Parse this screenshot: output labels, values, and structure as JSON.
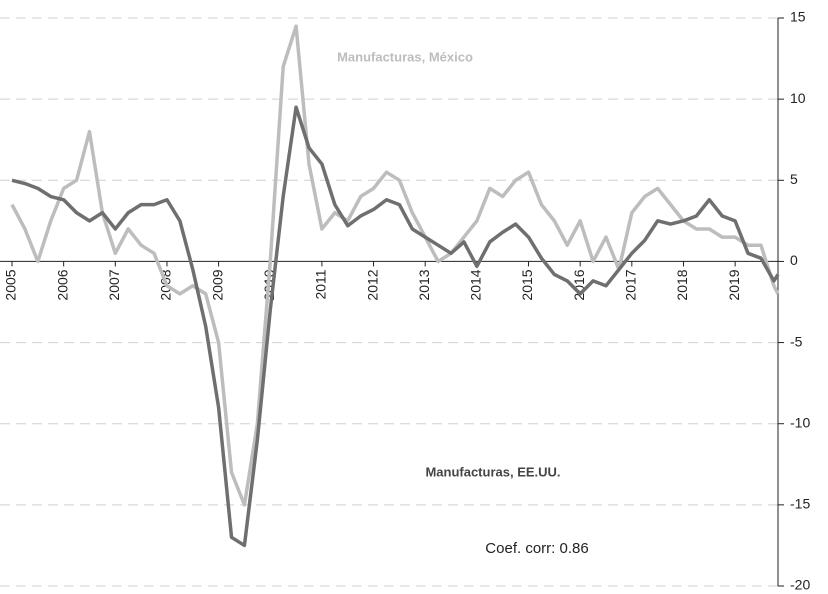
{
  "chart_data": {
    "type": "line",
    "x": [
      2005,
      2005.25,
      2005.5,
      2005.75,
      2006,
      2006.25,
      2006.5,
      2006.75,
      2007,
      2007.25,
      2007.5,
      2007.75,
      2008,
      2008.25,
      2008.5,
      2008.75,
      2009,
      2009.25,
      2009.5,
      2009.75,
      2010,
      2010.25,
      2010.5,
      2010.75,
      2011,
      2011.25,
      2011.5,
      2011.75,
      2012,
      2012.25,
      2012.5,
      2012.75,
      2013,
      2013.25,
      2013.5,
      2013.75,
      2014,
      2014.25,
      2014.5,
      2014.75,
      2015,
      2015.25,
      2015.5,
      2015.75,
      2016,
      2016.25,
      2016.5,
      2016.75,
      2017,
      2017.25,
      2017.5,
      2017.75,
      2018,
      2018.25,
      2018.5,
      2018.75,
      2019,
      2019.25,
      2019.5,
      2019.75,
      2019.83
    ],
    "series": [
      {
        "name": "Manufacturas, EE.UU.",
        "color": "#6f6f6f",
        "values": [
          5,
          4.8,
          4.5,
          4,
          3.8,
          3,
          2.5,
          3,
          2,
          3,
          3.5,
          3.5,
          3.8,
          2.5,
          -0.5,
          -4,
          -9,
          -17,
          -17.5,
          -11,
          -3,
          4,
          9.5,
          7,
          6,
          3.5,
          2.2,
          2.8,
          3.2,
          3.8,
          3.5,
          2,
          1.5,
          1,
          0.5,
          1.2,
          -0.3,
          1.2,
          1.8,
          2.3,
          1.5,
          0.2,
          -0.8,
          -1.2,
          -2,
          -1.2,
          -1.5,
          -0.5,
          0.5,
          1.3,
          2.5,
          2.3,
          2.5,
          2.8,
          3.8,
          2.8,
          2.5,
          0.5,
          0.2,
          -1.2,
          -0.8
        ]
      },
      {
        "name": "Manufacturas, México",
        "color": "#bdbdbd",
        "values": [
          3.5,
          2,
          0,
          2.5,
          4.5,
          5,
          8,
          3,
          0.5,
          2,
          1,
          0.5,
          -1.5,
          -2,
          -1.5,
          -2,
          -5,
          -13,
          -15,
          -10,
          0,
          12,
          14.5,
          6,
          2,
          3,
          2.5,
          4,
          4.5,
          5.5,
          5,
          3,
          1.5,
          0,
          0.5,
          1.5,
          2.5,
          4.5,
          4,
          5,
          5.5,
          3.5,
          2.5,
          1,
          2.5,
          0,
          1.5,
          -0.5,
          3,
          4,
          4.5,
          3.5,
          2.5,
          2,
          2,
          1.5,
          1.5,
          1,
          1,
          -1.5,
          -2
        ]
      }
    ],
    "annotations": [
      "Manufacturas, México",
      "Manufacturas, EE.UU.",
      "Coef. corr: 0.86"
    ],
    "xlim": [
      2005,
      2019.83
    ],
    "xticks": [
      2005,
      2006,
      2007,
      2008,
      2009,
      2010,
      2011,
      2012,
      2013,
      2014,
      2015,
      2016,
      2017,
      2018,
      2019
    ],
    "ylim": [
      -20,
      15
    ],
    "yticks": [
      -20,
      -15,
      -10,
      -5,
      0,
      5,
      10,
      15
    ],
    "grid": true
  }
}
